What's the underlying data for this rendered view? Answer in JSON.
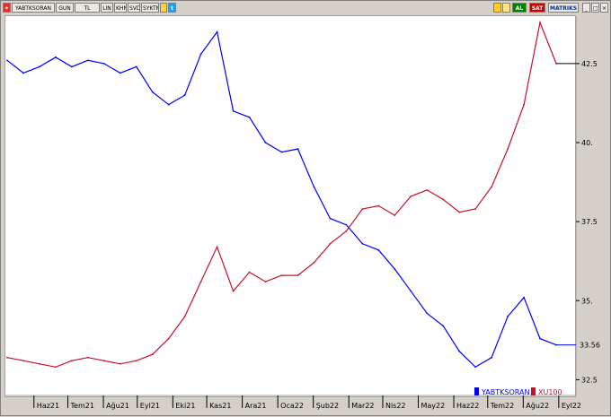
{
  "toolbar": {
    "symbol": "YABTKSORAN",
    "period": "GUN",
    "currency": "TL",
    "scale": "LIN",
    "chart_type_1": "KHN",
    "chart_type_2": "SVD",
    "indicator": "SYKTMP",
    "al_label": "AL",
    "sat_label": "SAT",
    "matriks_label": "MATRIKS",
    "icons": [
      "settings-icon",
      "refresh-icon",
      "twitter-icon",
      "flag-icon",
      "chart-icon",
      "minimize-icon",
      "maximize-icon",
      "close-icon"
    ]
  },
  "colors": {
    "blue_series": "#0000ff",
    "red_series": "#c8102e",
    "al_bg": "#008000",
    "sat_bg": "#cc0000"
  },
  "chart_data": {
    "type": "line",
    "title": "",
    "ylabel": "",
    "xlabel": "",
    "ylim": [
      32.0,
      44.0
    ],
    "y_ticks": [
      "42.5",
      "40.",
      "37.5",
      "35.",
      "32.5"
    ],
    "y_tick_values": [
      42.5,
      40.0,
      37.5,
      35.0,
      32.5
    ],
    "last_value_label": "33.56",
    "x_tick_labels": [
      "Haz21",
      "Tem21",
      "Ağu21",
      "Eyl21",
      "Eki21",
      "Kas21",
      "Ara21",
      "Oca22",
      "Şub22",
      "Mar22",
      "Nis22",
      "May22",
      "Haz22",
      "Tem22",
      "Ağu22",
      "Eyl22"
    ],
    "x_tick_index": [
      1,
      22,
      44,
      65,
      87,
      108,
      130,
      152,
      174,
      196,
      217,
      239,
      261,
      282,
      304,
      326
    ],
    "legend": [
      "YABTKSORAN",
      "XU100"
    ],
    "legend_position": "bottom-right",
    "series": [
      {
        "name": "YABTKSORAN",
        "x": [
          0,
          10,
          20,
          30,
          40,
          50,
          60,
          70,
          80,
          90,
          100,
          110,
          120,
          130,
          140,
          150,
          160,
          170,
          180,
          190,
          200,
          210,
          220,
          230,
          240,
          250,
          260,
          270,
          280,
          290,
          300,
          310,
          320,
          330,
          340
        ],
        "values": [
          42.6,
          42.2,
          42.4,
          42.7,
          42.4,
          42.6,
          42.5,
          42.2,
          42.4,
          41.6,
          41.2,
          41.5,
          42.8,
          43.5,
          41.0,
          40.8,
          40.0,
          39.7,
          39.8,
          38.6,
          37.6,
          37.4,
          36.8,
          36.6,
          36.0,
          35.3,
          34.6,
          34.2,
          33.4,
          32.9,
          33.2,
          34.5,
          35.1,
          33.8,
          33.6
        ]
      },
      {
        "name": "XU100",
        "x": [
          0,
          10,
          20,
          30,
          40,
          50,
          60,
          70,
          80,
          90,
          100,
          110,
          120,
          130,
          140,
          150,
          160,
          170,
          180,
          190,
          200,
          210,
          220,
          230,
          240,
          250,
          260,
          270,
          280,
          290,
          300,
          310,
          320,
          330,
          340
        ],
        "values": [
          33.2,
          33.1,
          33.0,
          32.9,
          33.1,
          33.2,
          33.1,
          33.0,
          33.1,
          33.3,
          33.8,
          34.5,
          35.6,
          36.7,
          35.3,
          35.9,
          35.6,
          35.8,
          35.8,
          36.2,
          36.8,
          37.2,
          37.9,
          38.0,
          37.7,
          38.3,
          38.5,
          38.2,
          37.8,
          37.9,
          38.6,
          39.8,
          41.2,
          43.8,
          42.5
        ]
      }
    ]
  }
}
